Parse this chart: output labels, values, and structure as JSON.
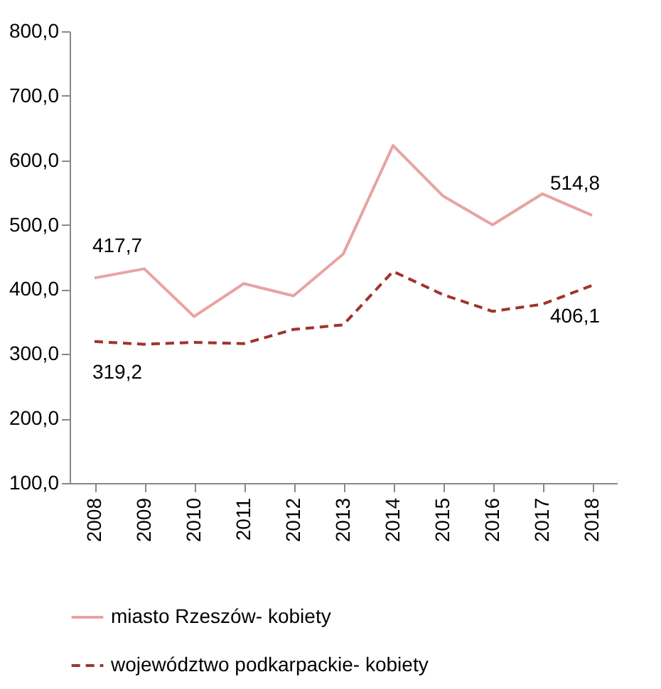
{
  "chart_data": {
    "type": "line",
    "categories": [
      "2008",
      "2009",
      "2010",
      "2011",
      "2012",
      "2013",
      "2014",
      "2015",
      "2016",
      "2017",
      "2018"
    ],
    "series": [
      {
        "name": "miasto Rzeszów- kobiety",
        "color": "#e8a3a3",
        "line_style": "solid",
        "values": [
          417.7,
          432,
          358,
          409,
          390,
          455,
          623,
          545,
          500,
          548,
          514.8
        ],
        "value_labels": [
          "417,7",
          null,
          null,
          null,
          null,
          null,
          null,
          null,
          null,
          null,
          "514,8"
        ]
      },
      {
        "name": "województwo podkarpackie- kobiety",
        "color": "#a0342c",
        "line_style": "dashed",
        "values": [
          319.2,
          315,
          318,
          316,
          338,
          345,
          428,
          392,
          366,
          377,
          406.1
        ],
        "value_labels": [
          "319,2",
          null,
          null,
          null,
          null,
          null,
          null,
          null,
          null,
          null,
          "406,1"
        ]
      }
    ],
    "ylim": [
      100,
      800
    ],
    "yticks": [
      {
        "value": 100,
        "label": "100,0"
      },
      {
        "value": 200,
        "label": "200,0"
      },
      {
        "value": 300,
        "label": "300,0"
      },
      {
        "value": 400,
        "label": "400,0"
      },
      {
        "value": 500,
        "label": "500,0"
      },
      {
        "value": 600,
        "label": "600,0"
      },
      {
        "value": 700,
        "label": "700,0"
      },
      {
        "value": 800,
        "label": "800,0"
      }
    ],
    "legend": "bottom",
    "marker": "none"
  }
}
